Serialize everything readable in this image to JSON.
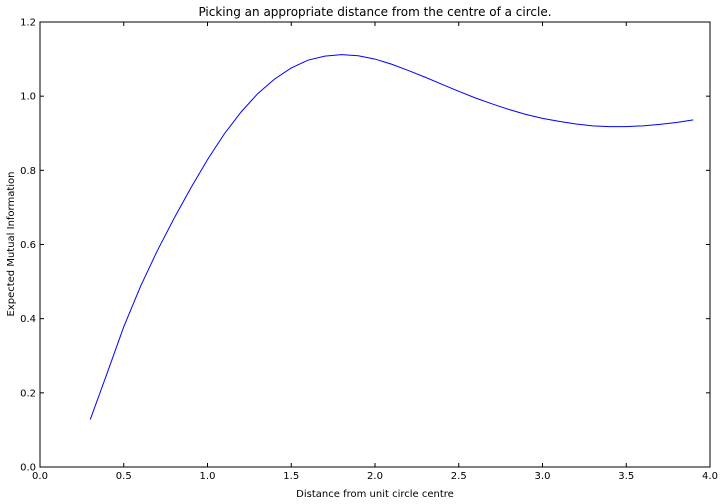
{
  "chart_data": {
    "type": "line",
    "title": "Picking an appropriate distance from the centre of a circle.",
    "xlabel": "Distance from unit circle centre",
    "ylabel": "Expected Mutual Information",
    "xlim": [
      0.0,
      4.0
    ],
    "ylim": [
      0.0,
      1.2
    ],
    "xticks": [
      "0.0",
      "0.5",
      "1.0",
      "1.5",
      "2.0",
      "2.5",
      "3.0",
      "3.5",
      "4.0"
    ],
    "yticks": [
      "0.0",
      "0.2",
      "0.4",
      "0.6",
      "0.8",
      "1.0",
      "1.2"
    ],
    "grid": false,
    "series": [
      {
        "color": "#0000ff",
        "x": [
          0.3,
          0.4,
          0.5,
          0.6,
          0.7,
          0.8,
          0.9,
          1.0,
          1.1,
          1.2,
          1.3,
          1.4,
          1.5,
          1.6,
          1.7,
          1.8,
          1.9,
          2.0,
          2.1,
          2.2,
          2.3,
          2.4,
          2.5,
          2.6,
          2.7,
          2.8,
          2.9,
          3.0,
          3.1,
          3.2,
          3.3,
          3.4,
          3.5,
          3.6,
          3.7,
          3.8,
          3.9
        ],
        "y": [
          0.128,
          0.252,
          0.378,
          0.487,
          0.583,
          0.67,
          0.752,
          0.829,
          0.898,
          0.957,
          1.007,
          1.046,
          1.076,
          1.097,
          1.108,
          1.112,
          1.109,
          1.1,
          1.086,
          1.069,
          1.051,
          1.032,
          1.013,
          0.995,
          0.979,
          0.964,
          0.951,
          0.94,
          0.932,
          0.925,
          0.92,
          0.918,
          0.918,
          0.92,
          0.924,
          0.929,
          0.936
        ]
      }
    ]
  }
}
